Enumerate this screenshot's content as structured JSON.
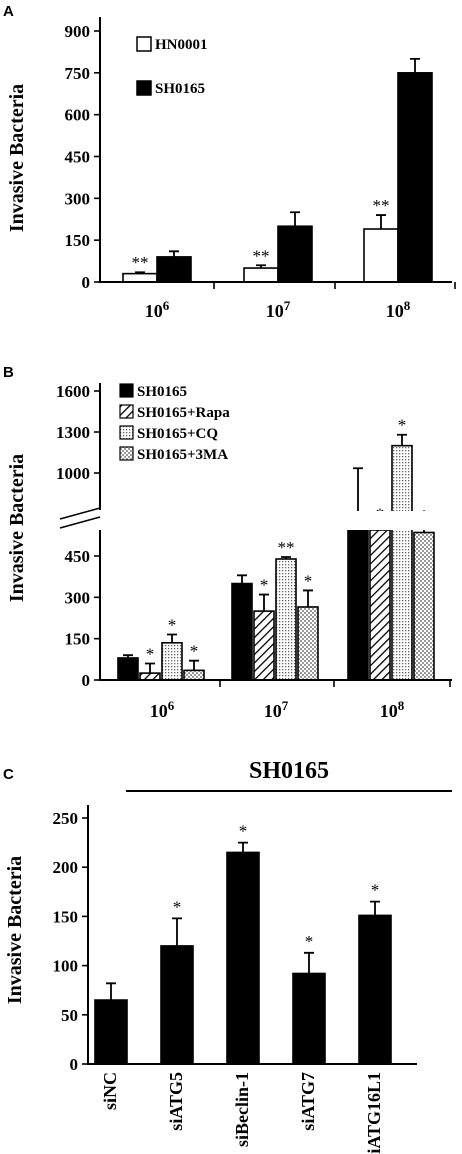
{
  "panels": [
    {
      "letter": "A",
      "chart_data": {
        "type": "bar",
        "ylabel": "Invasive Bacteria",
        "ylim": [
          0,
          900
        ],
        "yticks": [
          "0",
          "150",
          "300",
          "450",
          "600",
          "750",
          "900"
        ],
        "categories": [
          "10",
          "10",
          "10"
        ],
        "category_exponents": [
          "6",
          "7",
          "8"
        ],
        "series": [
          {
            "name": "HN0001",
            "fill": "white",
            "values": [
              30,
              50,
              190
            ],
            "errors": [
              5,
              10,
              50
            ],
            "annotations": [
              "**",
              "**",
              "**"
            ]
          },
          {
            "name": "SH0165",
            "fill": "black",
            "values": [
              90,
              200,
              750
            ],
            "errors": [
              20,
              50,
              50
            ],
            "annotations": [
              "",
              "",
              ""
            ]
          }
        ],
        "legend": "top-left"
      }
    },
    {
      "letter": "B",
      "chart_data": {
        "type": "bar",
        "ylabel": "Invasive Bacteria",
        "broken_axis": true,
        "yticks_lower": [
          "0",
          "150",
          "300",
          "450"
        ],
        "yticks_upper": [
          "1000",
          "1300",
          "1600"
        ],
        "categories": [
          "10",
          "10",
          "10"
        ],
        "category_exponents": [
          "6",
          "7",
          "8"
        ],
        "series": [
          {
            "name": "SH0165",
            "fill": "black",
            "values": [
              80,
              350,
              950
            ],
            "errors": [
              10,
              30,
              85
            ],
            "annotations": [
              "",
              "",
              ""
            ]
          },
          {
            "name": "SH0165+Rapa",
            "fill": "hatch",
            "values": [
              25,
              250,
              800
            ],
            "errors": [
              35,
              60,
              65
            ],
            "annotations": [
              "*",
              "*",
              "*"
            ]
          },
          {
            "name": "SH0165+CQ",
            "fill": "dots",
            "values": [
              135,
              510,
              1200
            ],
            "errors": [
              30,
              20,
              80
            ],
            "annotations": [
              "*",
              "**",
              "*"
            ]
          },
          {
            "name": "SH0165+3MA",
            "fill": "checker",
            "values": [
              35,
              265,
              775
            ],
            "errors": [
              35,
              60,
              75
            ],
            "annotations": [
              "*",
              "*",
              "*"
            ]
          }
        ],
        "legend": "top-left"
      }
    },
    {
      "letter": "C",
      "chart_data": {
        "type": "bar",
        "title": "SH0165",
        "ylabel": "Invasive Bacteria",
        "ylim": [
          0,
          250
        ],
        "yticks": [
          "0",
          "50",
          "100",
          "150",
          "200",
          "250"
        ],
        "categories": [
          "siNC",
          "siATG5",
          "siBeclin-1",
          "siATG7",
          "siATG16L1"
        ],
        "values": [
          65,
          120,
          215,
          92,
          151
        ],
        "errors": [
          17,
          28,
          10,
          21,
          14
        ],
        "annotations": [
          "",
          "*",
          "*",
          "*",
          "*"
        ]
      }
    }
  ]
}
